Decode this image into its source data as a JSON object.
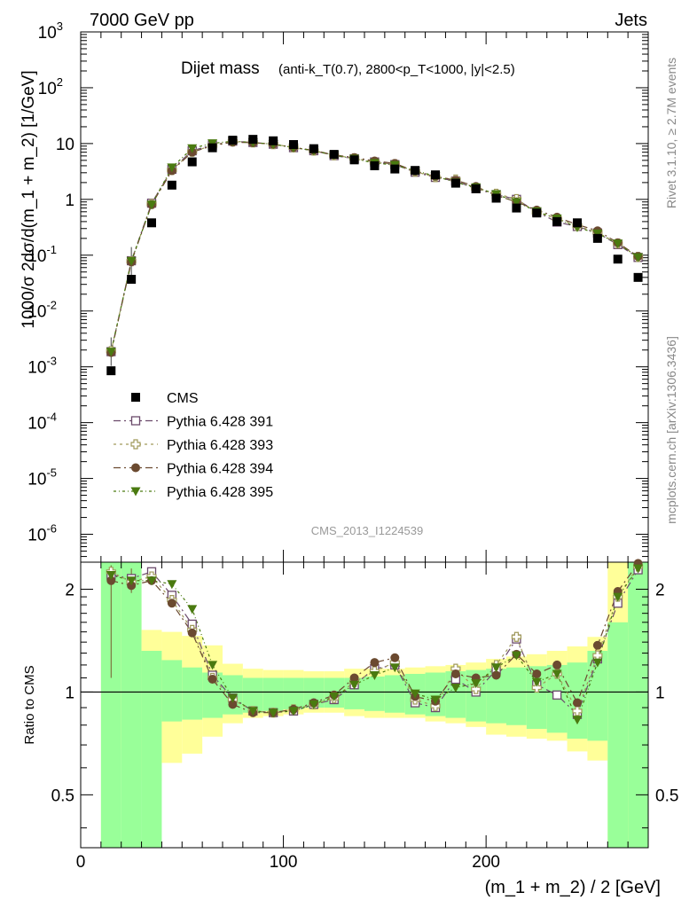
{
  "header": {
    "left": "7000 GeV pp",
    "right": "Jets"
  },
  "side_labels": {
    "rivet": "Rivet 3.1.10, ≥ 2.7M events",
    "mcplots": "mcplots.cern.ch [arXiv:1306.3436]"
  },
  "chart_data": {
    "type": "scatter",
    "title_main": "Dijet mass",
    "title_detail": "(anti-k_T(0.7), 2800<p_T<1000, |y|<2.5)",
    "analysis_id": "CMS_2013_I1224539",
    "xlabel": "(m_1 + m_2) / 2 [GeV]",
    "ylabel": "1000/σ 2dσ/d(m_1 + m_2) [1/GeV]",
    "ratio_ylabel": "Ratio to CMS",
    "xlim": [
      0,
      280
    ],
    "ylim": [
      3e-07,
      1000
    ],
    "yscale": "log",
    "ratio_ylim": [
      0.35,
      2.4
    ],
    "x_ticks": [
      0,
      100,
      200
    ],
    "y_ticks": [
      "10^-6",
      "10^-5",
      "10^-4",
      "10^-3",
      "10^-2",
      "10^-1",
      "1",
      "10",
      "10^2",
      "10^3"
    ],
    "ratio_ticks": [
      "0.5",
      "1",
      "2"
    ],
    "x": [
      15,
      25,
      35,
      45,
      55,
      65,
      75,
      85,
      95,
      105,
      115,
      125,
      135,
      145,
      155,
      165,
      175,
      185,
      195,
      205,
      215,
      225,
      235,
      245,
      255,
      265,
      275
    ],
    "cms": [
      0.00085,
      0.037,
      0.38,
      1.8,
      4.7,
      8.4,
      11.5,
      11.9,
      11.2,
      9.6,
      8.1,
      6.4,
      5.1,
      4.0,
      3.5,
      3.3,
      2.75,
      1.95,
      1.55,
      1.05,
      0.7,
      0.57,
      0.4,
      0.38,
      0.2,
      0.085,
      0.04
    ],
    "ratios": {
      "Pythia 6.428 391": [
        2.2,
        2.15,
        2.25,
        1.92,
        1.58,
        1.12,
        0.96,
        0.88,
        0.87,
        0.88,
        0.92,
        0.95,
        1.05,
        1.17,
        1.2,
        0.93,
        0.9,
        1.09,
        1.0,
        1.16,
        1.43,
        1.05,
        0.98,
        0.86,
        1.25,
        1.82,
        2.28
      ],
      "Pythia 6.428 393": [
        2.25,
        2.1,
        2.18,
        1.86,
        1.52,
        1.1,
        0.95,
        0.88,
        0.87,
        0.89,
        0.92,
        0.96,
        1.07,
        1.15,
        1.22,
        0.95,
        0.91,
        1.17,
        1.02,
        1.2,
        1.45,
        1.03,
        1.13,
        0.88,
        1.28,
        1.9,
        2.33
      ],
      "Pythia 6.428 394": [
        2.12,
        2.05,
        2.12,
        1.82,
        1.49,
        1.09,
        0.92,
        0.87,
        0.87,
        0.89,
        0.93,
        0.98,
        1.1,
        1.22,
        1.26,
        0.97,
        0.94,
        1.13,
        1.1,
        1.12,
        1.29,
        1.13,
        1.2,
        0.93,
        1.37,
        1.97,
        2.38
      ],
      "Pythia 6.428 395": [
        2.2,
        2.12,
        2.12,
        2.07,
        1.75,
        1.2,
        0.96,
        0.88,
        0.87,
        0.88,
        0.92,
        0.97,
        1.05,
        1.12,
        1.18,
        0.99,
        0.95,
        1.03,
        1.06,
        1.18,
        1.28,
        1.07,
        1.13,
        0.83,
        1.22,
        1.9,
        2.3
      ]
    },
    "bands": {
      "edges": [
        10,
        20,
        30,
        40,
        50,
        60,
        70,
        80,
        90,
        100,
        110,
        120,
        130,
        140,
        150,
        160,
        170,
        180,
        190,
        200,
        210,
        220,
        230,
        240,
        250,
        260,
        270,
        280
      ],
      "yellow_lo": [
        0.35,
        0.68,
        0.55,
        0.62,
        0.66,
        0.74,
        0.81,
        0.84,
        0.85,
        0.86,
        0.87,
        0.87,
        0.85,
        0.84,
        0.84,
        0.84,
        0.82,
        0.81,
        0.79,
        0.75,
        0.74,
        0.73,
        0.72,
        0.67,
        0.63,
        0.35,
        0.35
      ],
      "yellow_hi": [
        2.4,
        2.4,
        1.52,
        1.5,
        1.46,
        1.37,
        1.21,
        1.17,
        1.16,
        1.16,
        1.15,
        1.15,
        1.17,
        1.17,
        1.17,
        1.18,
        1.19,
        1.2,
        1.22,
        1.25,
        1.27,
        1.29,
        1.32,
        1.36,
        1.45,
        2.4,
        2.4
      ],
      "green_lo": [
        0.35,
        0.35,
        0.35,
        0.82,
        0.83,
        0.84,
        0.86,
        0.87,
        0.88,
        0.89,
        0.9,
        0.9,
        0.89,
        0.88,
        0.87,
        0.86,
        0.85,
        0.84,
        0.82,
        0.81,
        0.8,
        0.78,
        0.76,
        0.73,
        0.72,
        0.35,
        0.35
      ],
      "green_hi": [
        2.4,
        2.4,
        1.32,
        1.24,
        1.18,
        1.14,
        1.12,
        1.1,
        1.1,
        1.1,
        1.1,
        1.1,
        1.1,
        1.11,
        1.12,
        1.13,
        1.14,
        1.15,
        1.16,
        1.17,
        1.18,
        1.19,
        1.2,
        1.22,
        1.32,
        1.6,
        2.4
      ]
    },
    "colors": {
      "cms": "#000000",
      "Pythia 6.428 391": "#6b4a6b",
      "Pythia 6.428 393": "#a09a5a",
      "Pythia 6.428 394": "#6b4a30",
      "Pythia 6.428 395": "#4a7a10",
      "yellow": "#ffff99",
      "green": "#99ff99"
    },
    "legend": [
      {
        "label": "CMS",
        "marker": "square"
      },
      {
        "label": "Pythia 6.428 391",
        "marker": "open-square"
      },
      {
        "label": "Pythia 6.428 393",
        "marker": "open-cross"
      },
      {
        "label": "Pythia 6.428 394",
        "marker": "circle"
      },
      {
        "label": "Pythia 6.428 395",
        "marker": "triangle-down"
      }
    ],
    "legend_position": "bottom-left"
  }
}
